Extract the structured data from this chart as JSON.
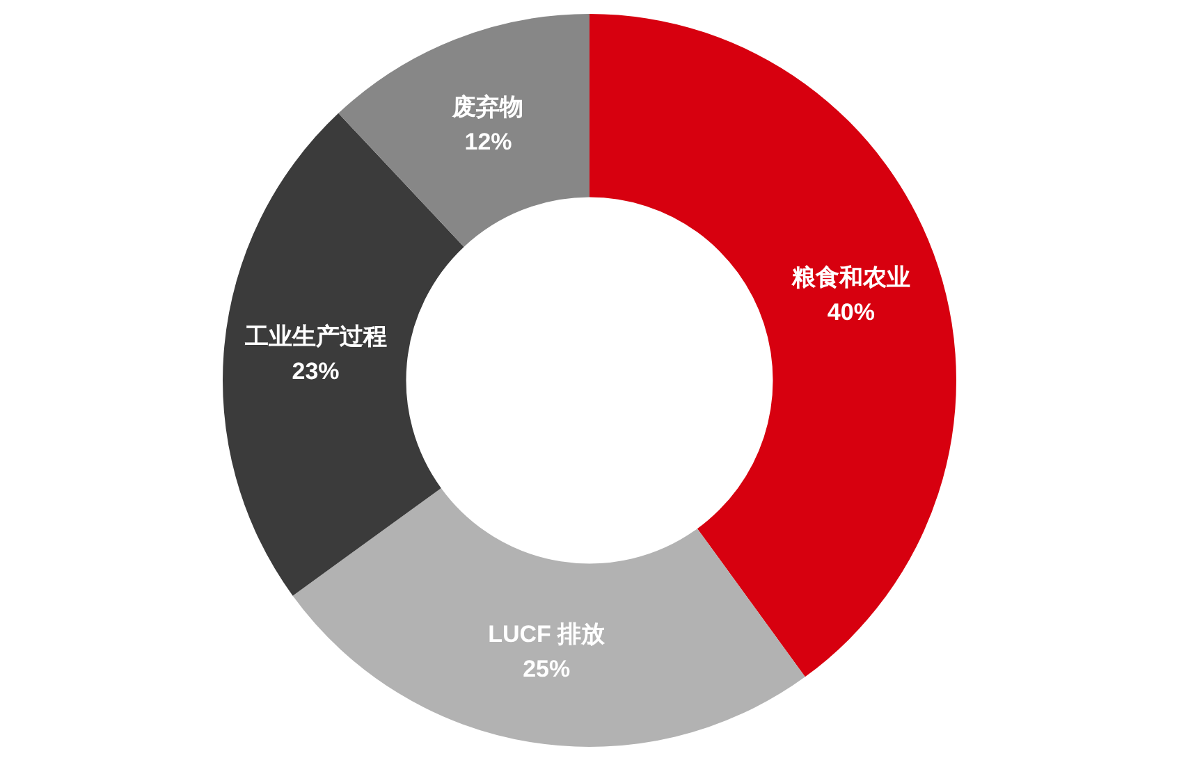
{
  "chart_data": {
    "type": "donut",
    "categories": [
      "粮食和农业",
      "LUCF 排放",
      "工业生产过程",
      "废弃物"
    ],
    "values": [
      40,
      25,
      23,
      12
    ],
    "colors": [
      "#d7000f",
      "#b2b2b2",
      "#3b3b3b",
      "#878787"
    ],
    "value_labels": [
      "40%",
      "25%",
      "23%",
      "12%"
    ],
    "legend": false
  }
}
